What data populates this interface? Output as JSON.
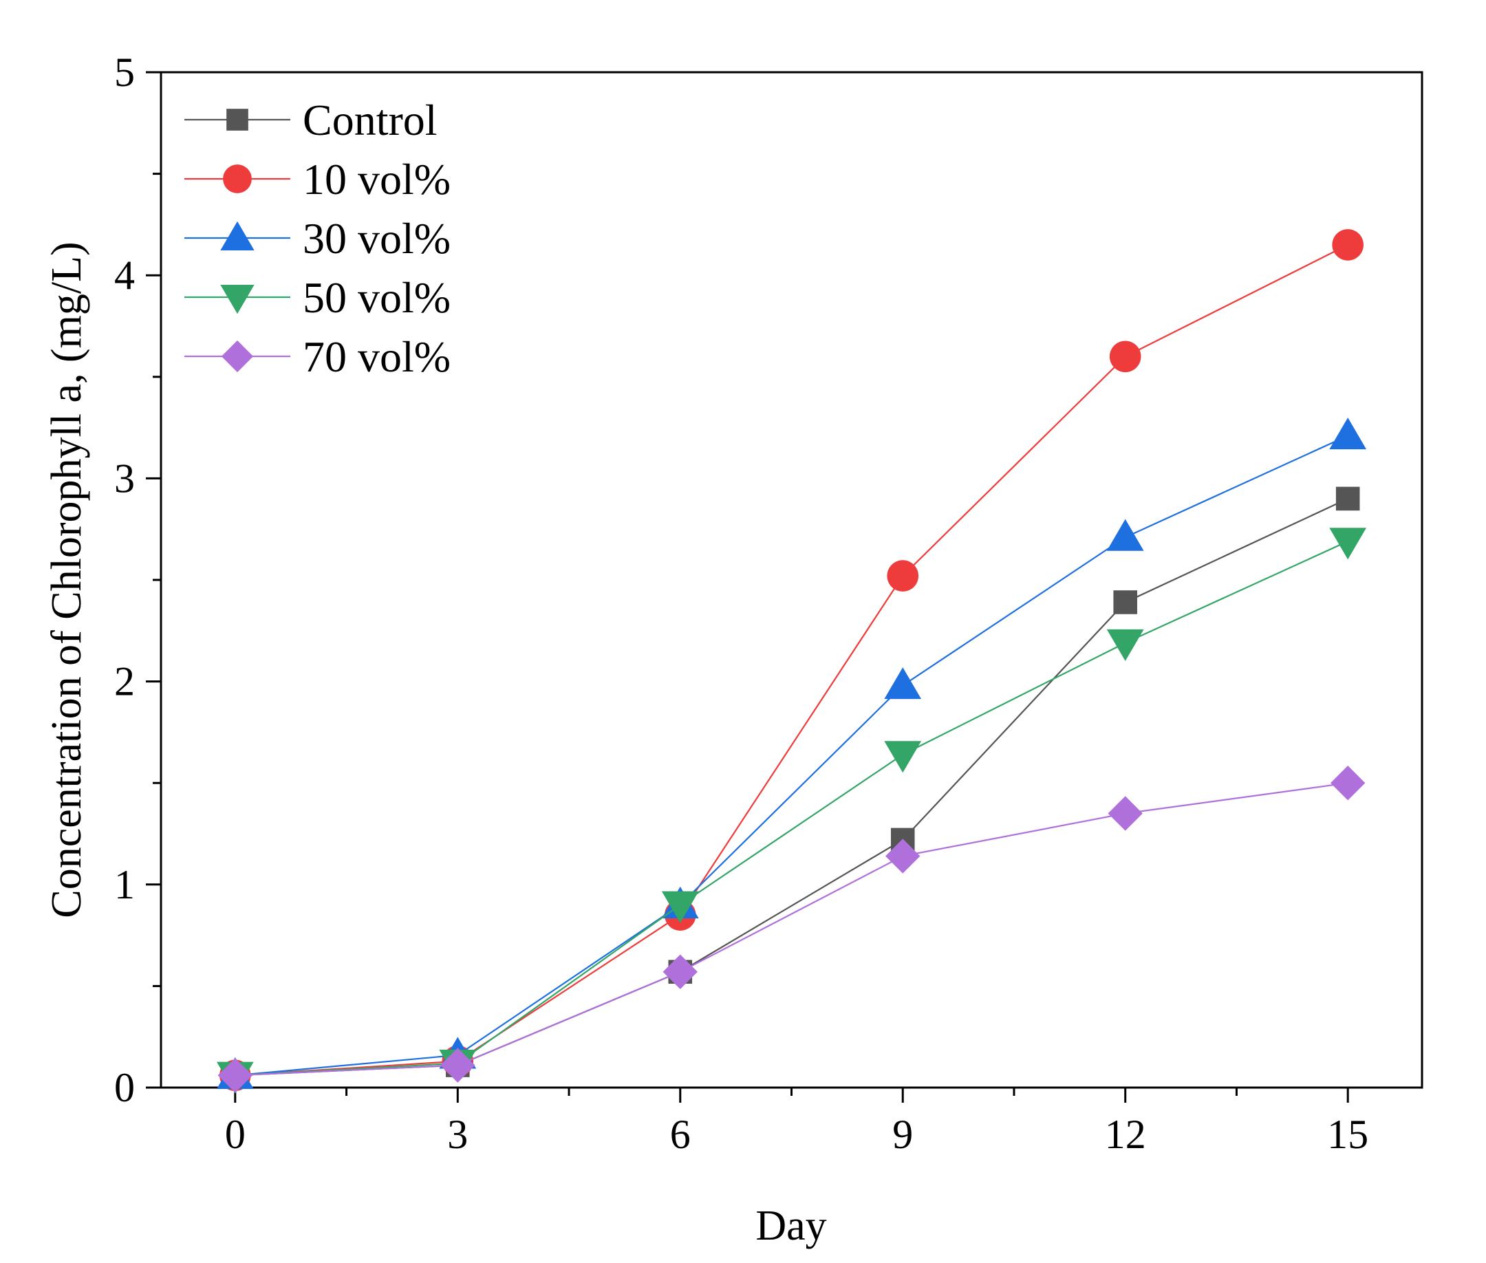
{
  "chart_data": {
    "type": "line",
    "title": "",
    "xlabel": "Day",
    "ylabel": "Concentration of Chlorophyll a, (mg/L)",
    "x": [
      0,
      3,
      6,
      9,
      12,
      15
    ],
    "xlim": [
      -1,
      16
    ],
    "ylim": [
      0,
      5
    ],
    "xticks": [
      0,
      3,
      6,
      9,
      12,
      15
    ],
    "yticks": [
      0,
      1,
      2,
      3,
      4,
      5
    ],
    "grid": false,
    "legend_position": "top-left",
    "series": [
      {
        "name": "Control",
        "values": [
          0.06,
          0.11,
          0.57,
          1.22,
          2.39,
          2.9
        ],
        "color": "#555555",
        "marker": "square"
      },
      {
        "name": "10 vol%",
        "values": [
          0.06,
          0.13,
          0.85,
          2.52,
          3.6,
          4.15
        ],
        "color": "#EE3B3B",
        "marker": "circle"
      },
      {
        "name": "30 vol%",
        "values": [
          0.06,
          0.16,
          0.9,
          1.98,
          2.71,
          3.21
        ],
        "color": "#1E6FE0",
        "marker": "triangle-up"
      },
      {
        "name": "50 vol%",
        "values": [
          0.06,
          0.12,
          0.9,
          1.64,
          2.19,
          2.69
        ],
        "color": "#33A566",
        "marker": "triangle-down"
      },
      {
        "name": "70 vol%",
        "values": [
          0.06,
          0.11,
          0.57,
          1.14,
          1.35,
          1.5
        ],
        "color": "#B070DB",
        "marker": "diamond"
      }
    ]
  }
}
